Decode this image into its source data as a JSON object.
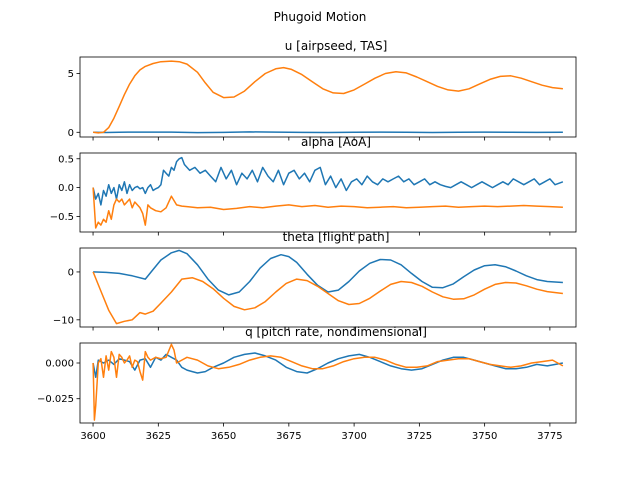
{
  "title": "Phugoid Motion",
  "colors": {
    "series_a": "#1f77b4",
    "series_b": "#ff7f0e"
  },
  "chart_data": [
    {
      "type": "line",
      "title": "u [airpseed, TAS]",
      "xlim": [
        3595,
        3785
      ],
      "ylim": [
        -0.4,
        6.4
      ],
      "xticks": [],
      "yticks": [
        {
          "v": 0,
          "label": "0"
        },
        {
          "v": 5,
          "label": "5"
        }
      ],
      "series": [
        {
          "color": "#1f77b4",
          "x": [
            3600,
            3605,
            3610,
            3620,
            3630,
            3640,
            3650,
            3660,
            3670,
            3680,
            3690,
            3700,
            3710,
            3720,
            3730,
            3740,
            3750,
            3760,
            3770,
            3780
          ],
          "y": [
            0,
            -0.02,
            0.01,
            0.02,
            0.02,
            -0.03,
            -0.01,
            0.03,
            0.02,
            -0.01,
            -0.02,
            0.01,
            0.02,
            0,
            -0.02,
            0,
            0.02,
            0,
            -0.01,
            0
          ]
        },
        {
          "color": "#ff7f0e",
          "x": [
            3600,
            3602,
            3604,
            3606,
            3608,
            3610,
            3612,
            3614,
            3616,
            3618,
            3620,
            3623,
            3626,
            3630,
            3633,
            3636,
            3640,
            3643,
            3646,
            3650,
            3654,
            3658,
            3662,
            3666,
            3670,
            3673,
            3676,
            3680,
            3684,
            3688,
            3692,
            3696,
            3700,
            3704,
            3708,
            3712,
            3716,
            3720,
            3724,
            3728,
            3732,
            3736,
            3740,
            3744,
            3748,
            3752,
            3756,
            3760,
            3764,
            3768,
            3772,
            3776,
            3780
          ],
          "y": [
            0,
            -0.05,
            0,
            0.4,
            1.2,
            2.2,
            3.2,
            4.1,
            4.8,
            5.3,
            5.6,
            5.85,
            6.0,
            6.05,
            6.0,
            5.8,
            5.1,
            4.2,
            3.4,
            2.95,
            3.0,
            3.5,
            4.3,
            5.0,
            5.4,
            5.5,
            5.35,
            4.9,
            4.3,
            3.7,
            3.35,
            3.3,
            3.6,
            4.1,
            4.6,
            5.0,
            5.15,
            5.05,
            4.7,
            4.3,
            3.9,
            3.6,
            3.5,
            3.7,
            4.1,
            4.5,
            4.75,
            4.8,
            4.6,
            4.3,
            4.0,
            3.8,
            3.7
          ]
        }
      ]
    },
    {
      "type": "line",
      "title": "alpha [AoA]",
      "xlim": [
        3595,
        3785
      ],
      "ylim": [
        -0.77,
        0.6
      ],
      "xticks": [],
      "yticks": [
        {
          "v": 0.5,
          "label": "0.5"
        },
        {
          "v": 0.0,
          "label": "0.0"
        },
        {
          "v": -0.5,
          "label": "−0.5"
        }
      ],
      "series": [
        {
          "color": "#1f77b4",
          "x": [
            3600,
            3601,
            3602,
            3603,
            3604,
            3605,
            3606,
            3607,
            3608,
            3609,
            3610,
            3611,
            3612,
            3613,
            3614,
            3615,
            3616,
            3617,
            3618,
            3619,
            3620,
            3621,
            3622,
            3623,
            3624,
            3625,
            3626,
            3627,
            3628,
            3629,
            3630,
            3631,
            3632,
            3633,
            3634,
            3635,
            3637,
            3639,
            3641,
            3643,
            3645,
            3647,
            3649,
            3651,
            3653,
            3655,
            3657,
            3659,
            3661,
            3663,
            3665,
            3667,
            3669,
            3671,
            3673,
            3675,
            3677,
            3679,
            3681,
            3683,
            3685,
            3687,
            3689,
            3691,
            3693,
            3695,
            3697,
            3699,
            3701,
            3703,
            3705,
            3707,
            3709,
            3711,
            3713,
            3715,
            3717,
            3719,
            3721,
            3723,
            3725,
            3727,
            3729,
            3731,
            3733,
            3735,
            3737,
            3739,
            3741,
            3743,
            3745,
            3747,
            3749,
            3751,
            3753,
            3755,
            3757,
            3759,
            3761,
            3763,
            3765,
            3767,
            3769,
            3771,
            3773,
            3775,
            3777,
            3780
          ],
          "y": [
            0,
            -0.2,
            -0.1,
            -0.3,
            -0.05,
            -0.15,
            0.05,
            -0.1,
            0.0,
            -0.2,
            0.05,
            -0.05,
            0.1,
            -0.1,
            0.05,
            -0.05,
            0.0,
            0.02,
            -0.02,
            0.0,
            -0.1,
            0.0,
            0.05,
            -0.05,
            -0.02,
            0.0,
            0.05,
            0.3,
            0.25,
            0.2,
            0.35,
            0.3,
            0.45,
            0.5,
            0.52,
            0.4,
            0.3,
            0.35,
            0.25,
            0.3,
            0.2,
            0.1,
            0.35,
            0.15,
            0.3,
            0.05,
            0.25,
            0.15,
            0.3,
            0.1,
            0.35,
            0.2,
            0.1,
            0.3,
            0.05,
            0.25,
            0.3,
            0.15,
            0.25,
            0.1,
            0.3,
            0.35,
            0.05,
            0.2,
            0.0,
            0.15,
            -0.05,
            0.1,
            0.15,
            0.05,
            0.2,
            0.1,
            0.05,
            0.15,
            0.1,
            0.15,
            0.2,
            0.1,
            0.15,
            0.05,
            0.1,
            0.15,
            0.05,
            0.1,
            0.05,
            0.02,
            0.0,
            0.05,
            0.1,
            0.05,
            0.0,
            0.05,
            0.1,
            0.05,
            0.0,
            0.05,
            0.1,
            0.05,
            0.15,
            0.1,
            0.05,
            0.1,
            0.15,
            0.05,
            0.1,
            0.15,
            0.05,
            0.1
          ]
        },
        {
          "color": "#ff7f0e",
          "x": [
            3600,
            3601,
            3602,
            3603,
            3604,
            3605,
            3606,
            3607,
            3608,
            3609,
            3610,
            3611,
            3612,
            3613,
            3614,
            3615,
            3616,
            3617,
            3618,
            3619,
            3620,
            3621,
            3622,
            3624,
            3626,
            3628,
            3630,
            3632,
            3634,
            3636,
            3640,
            3645,
            3650,
            3655,
            3660,
            3665,
            3670,
            3675,
            3680,
            3685,
            3690,
            3695,
            3700,
            3705,
            3710,
            3715,
            3720,
            3725,
            3730,
            3735,
            3740,
            3745,
            3750,
            3755,
            3760,
            3765,
            3770,
            3775,
            3780
          ],
          "y": [
            0,
            -0.7,
            -0.6,
            -0.65,
            -0.55,
            -0.6,
            -0.4,
            -0.55,
            -0.3,
            -0.2,
            -0.25,
            -0.2,
            -0.3,
            -0.25,
            -0.2,
            -0.35,
            -0.25,
            -0.3,
            -0.35,
            -0.45,
            -0.65,
            -0.3,
            -0.35,
            -0.4,
            -0.42,
            -0.35,
            -0.15,
            -0.3,
            -0.32,
            -0.33,
            -0.35,
            -0.34,
            -0.38,
            -0.36,
            -0.33,
            -0.35,
            -0.32,
            -0.3,
            -0.33,
            -0.31,
            -0.34,
            -0.32,
            -0.33,
            -0.35,
            -0.34,
            -0.33,
            -0.35,
            -0.34,
            -0.33,
            -0.32,
            -0.34,
            -0.33,
            -0.32,
            -0.33,
            -0.32,
            -0.31,
            -0.32,
            -0.33,
            -0.34
          ]
        }
      ]
    },
    {
      "type": "line",
      "title": "theta [flight path]",
      "xlim": [
        3595,
        3785
      ],
      "ylim": [
        -11.5,
        5.0
      ],
      "xticks": [],
      "yticks": [
        {
          "v": 0,
          "label": "0"
        },
        {
          "v": -10,
          "label": "−10"
        }
      ],
      "series": [
        {
          "color": "#1f77b4",
          "x": [
            3600,
            3605,
            3610,
            3615,
            3620,
            3623,
            3626,
            3630,
            3633,
            3636,
            3640,
            3644,
            3648,
            3652,
            3656,
            3660,
            3664,
            3668,
            3672,
            3675,
            3678,
            3682,
            3686,
            3690,
            3694,
            3698,
            3702,
            3706,
            3710,
            3714,
            3718,
            3722,
            3726,
            3730,
            3734,
            3738,
            3742,
            3746,
            3750,
            3754,
            3758,
            3762,
            3766,
            3770,
            3774,
            3780
          ],
          "y": [
            0,
            -0.1,
            -0.3,
            -0.8,
            -1.5,
            0.5,
            2.5,
            4.0,
            4.5,
            3.8,
            1.5,
            -1.5,
            -3.8,
            -4.8,
            -4.2,
            -2.0,
            0.8,
            2.8,
            3.6,
            3.2,
            2.0,
            -0.5,
            -2.8,
            -4.2,
            -3.8,
            -2.0,
            0.2,
            1.8,
            2.6,
            2.5,
            1.5,
            -0.3,
            -2.0,
            -3.2,
            -3.3,
            -2.5,
            -1.0,
            0.4,
            1.3,
            1.5,
            1.1,
            0.2,
            -0.8,
            -1.6,
            -2.0,
            -2.2
          ]
        },
        {
          "color": "#ff7f0e",
          "x": [
            3600,
            3603,
            3606,
            3609,
            3612,
            3615,
            3618,
            3620,
            3623,
            3626,
            3630,
            3634,
            3638,
            3642,
            3646,
            3650,
            3654,
            3658,
            3662,
            3666,
            3670,
            3674,
            3678,
            3682,
            3686,
            3690,
            3694,
            3698,
            3702,
            3706,
            3710,
            3714,
            3718,
            3722,
            3726,
            3730,
            3734,
            3738,
            3742,
            3746,
            3750,
            3754,
            3758,
            3762,
            3766,
            3770,
            3774,
            3780
          ],
          "y": [
            0,
            -4,
            -8,
            -10.8,
            -10.3,
            -10,
            -8.5,
            -8.8,
            -8.2,
            -6.5,
            -4.2,
            -1.5,
            -1.2,
            -2.0,
            -3.5,
            -5.5,
            -7.2,
            -7.9,
            -7.5,
            -6.2,
            -4.2,
            -2.4,
            -1.5,
            -1.8,
            -3.0,
            -4.5,
            -6.0,
            -6.8,
            -6.6,
            -5.5,
            -4.0,
            -2.6,
            -2.0,
            -2.2,
            -3.0,
            -4.2,
            -5.2,
            -5.7,
            -5.6,
            -4.8,
            -3.6,
            -2.6,
            -2.2,
            -2.3,
            -2.9,
            -3.6,
            -4.1,
            -4.5
          ]
        }
      ]
    },
    {
      "type": "line",
      "title": "q [pitch rate, nondimensional]",
      "xlim": [
        3595,
        3785
      ],
      "ylim": [
        -0.042,
        0.014
      ],
      "xticks": [
        {
          "v": 3600,
          "label": "3600"
        },
        {
          "v": 3625,
          "label": "3625"
        },
        {
          "v": 3650,
          "label": "3650"
        },
        {
          "v": 3675,
          "label": "3675"
        },
        {
          "v": 3700,
          "label": "3700"
        },
        {
          "v": 3725,
          "label": "3725"
        },
        {
          "v": 3750,
          "label": "3750"
        },
        {
          "v": 3775,
          "label": "3775"
        }
      ],
      "yticks": [
        {
          "v": 0.0,
          "label": "0.000"
        },
        {
          "v": -0.025,
          "label": "−0.025"
        }
      ],
      "series": [
        {
          "color": "#1f77b4",
          "x": [
            3600,
            3601,
            3602,
            3603,
            3604,
            3606,
            3608,
            3610,
            3612,
            3614,
            3616,
            3618,
            3620,
            3622,
            3624,
            3626,
            3628,
            3630,
            3632,
            3634,
            3636,
            3638,
            3640,
            3643,
            3646,
            3650,
            3654,
            3658,
            3662,
            3666,
            3670,
            3674,
            3678,
            3682,
            3686,
            3690,
            3694,
            3698,
            3702,
            3706,
            3710,
            3714,
            3718,
            3722,
            3726,
            3730,
            3734,
            3738,
            3742,
            3746,
            3750,
            3754,
            3758,
            3762,
            3766,
            3770,
            3774,
            3780
          ],
          "y": [
            0,
            -0.01,
            0.002,
            0.001,
            0,
            0.002,
            -0.001,
            0.003,
            0.002,
            0.001,
            -0.005,
            0.002,
            0.003,
            -0.003,
            0.004,
            0.002,
            0.006,
            0.004,
            0.002,
            -0.003,
            -0.005,
            -0.006,
            -0.007,
            -0.006,
            -0.003,
            0,
            0.004,
            0.006,
            0.007,
            0.005,
            0.002,
            -0.003,
            -0.006,
            -0.007,
            -0.004,
            0,
            0.003,
            0.005,
            0.006,
            0.004,
            0.001,
            -0.002,
            -0.004,
            -0.005,
            -0.004,
            -0.001,
            0.002,
            0.004,
            0.004,
            0.002,
            0,
            -0.002,
            -0.004,
            -0.004,
            -0.003,
            -0.001,
            -0.002,
            0
          ]
        },
        {
          "color": "#ff7f0e",
          "x": [
            3600,
            3600.5,
            3601,
            3602,
            3603,
            3604,
            3605,
            3606,
            3607,
            3608,
            3609,
            3610,
            3611,
            3612,
            3613,
            3614,
            3615,
            3616,
            3617,
            3618,
            3619,
            3620,
            3621,
            3622,
            3624,
            3626,
            3628,
            3630,
            3631,
            3632,
            3634,
            3636,
            3640,
            3644,
            3648,
            3652,
            3656,
            3660,
            3664,
            3668,
            3672,
            3676,
            3680,
            3684,
            3688,
            3692,
            3696,
            3700,
            3704,
            3708,
            3712,
            3716,
            3720,
            3724,
            3728,
            3732,
            3736,
            3740,
            3744,
            3748,
            3752,
            3756,
            3760,
            3764,
            3768,
            3772,
            3776,
            3780
          ],
          "y": [
            0,
            -0.04,
            -0.03,
            0,
            0.003,
            -0.01,
            0.005,
            -0.005,
            0.008,
            0.004,
            -0.01,
            0.006,
            0.004,
            0,
            0.002,
            0.005,
            -0.003,
            0.002,
            0.001,
            -0.006,
            -0.012,
            0.008,
            0.004,
            0.002,
            0.004,
            0.003,
            0.004,
            0.013,
            0.009,
            0,
            0.002,
            0.004,
            0.002,
            -0.002,
            -0.004,
            -0.003,
            -0.001,
            0.002,
            0.004,
            0.005,
            0.004,
            0.001,
            -0.002,
            -0.004,
            -0.004,
            -0.002,
            0.001,
            0.003,
            0.004,
            0.004,
            0.002,
            -0.001,
            -0.003,
            -0.003,
            -0.002,
            0.001,
            0.002,
            0.003,
            0.003,
            0.001,
            -0.001,
            -0.002,
            -0.003,
            -0.002,
            0,
            0.001,
            0.002,
            -0.002
          ]
        }
      ]
    }
  ]
}
